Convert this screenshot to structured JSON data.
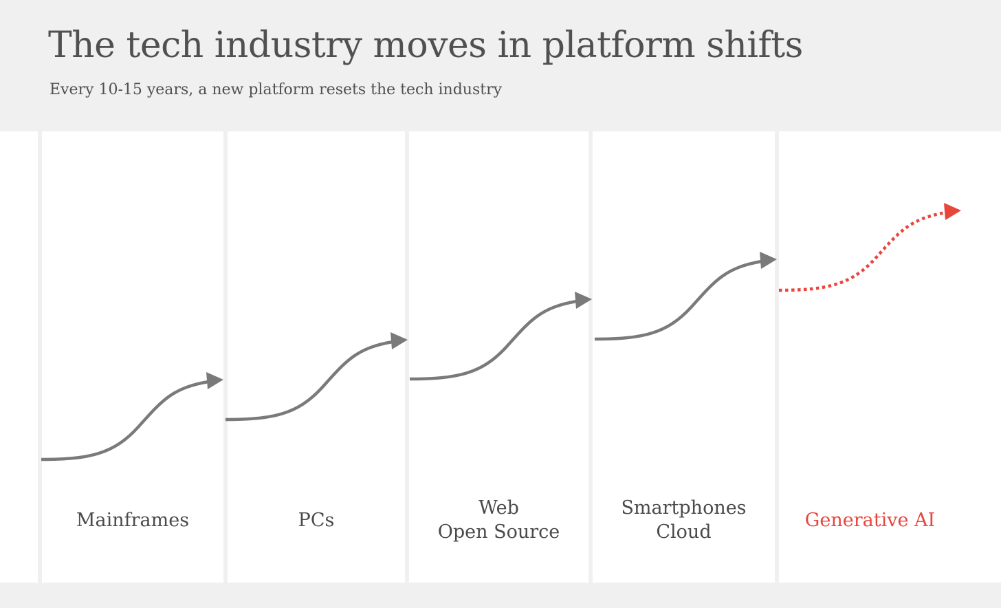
{
  "header": {
    "title": "The tech industry moves in platform shifts",
    "subtitle": "Every 10-15 years, a new platform resets the tech industry"
  },
  "platforms": [
    {
      "label": "Mainframes"
    },
    {
      "label": "PCs"
    },
    {
      "label": "Web\nOpen Source"
    },
    {
      "label": "Smartphones\nCloud"
    },
    {
      "label": "Generative AI",
      "highlight": true
    }
  ],
  "colors": {
    "background": "#f0f0f0",
    "arrow": "#7a7a7a",
    "highlight": "#e8453c"
  }
}
